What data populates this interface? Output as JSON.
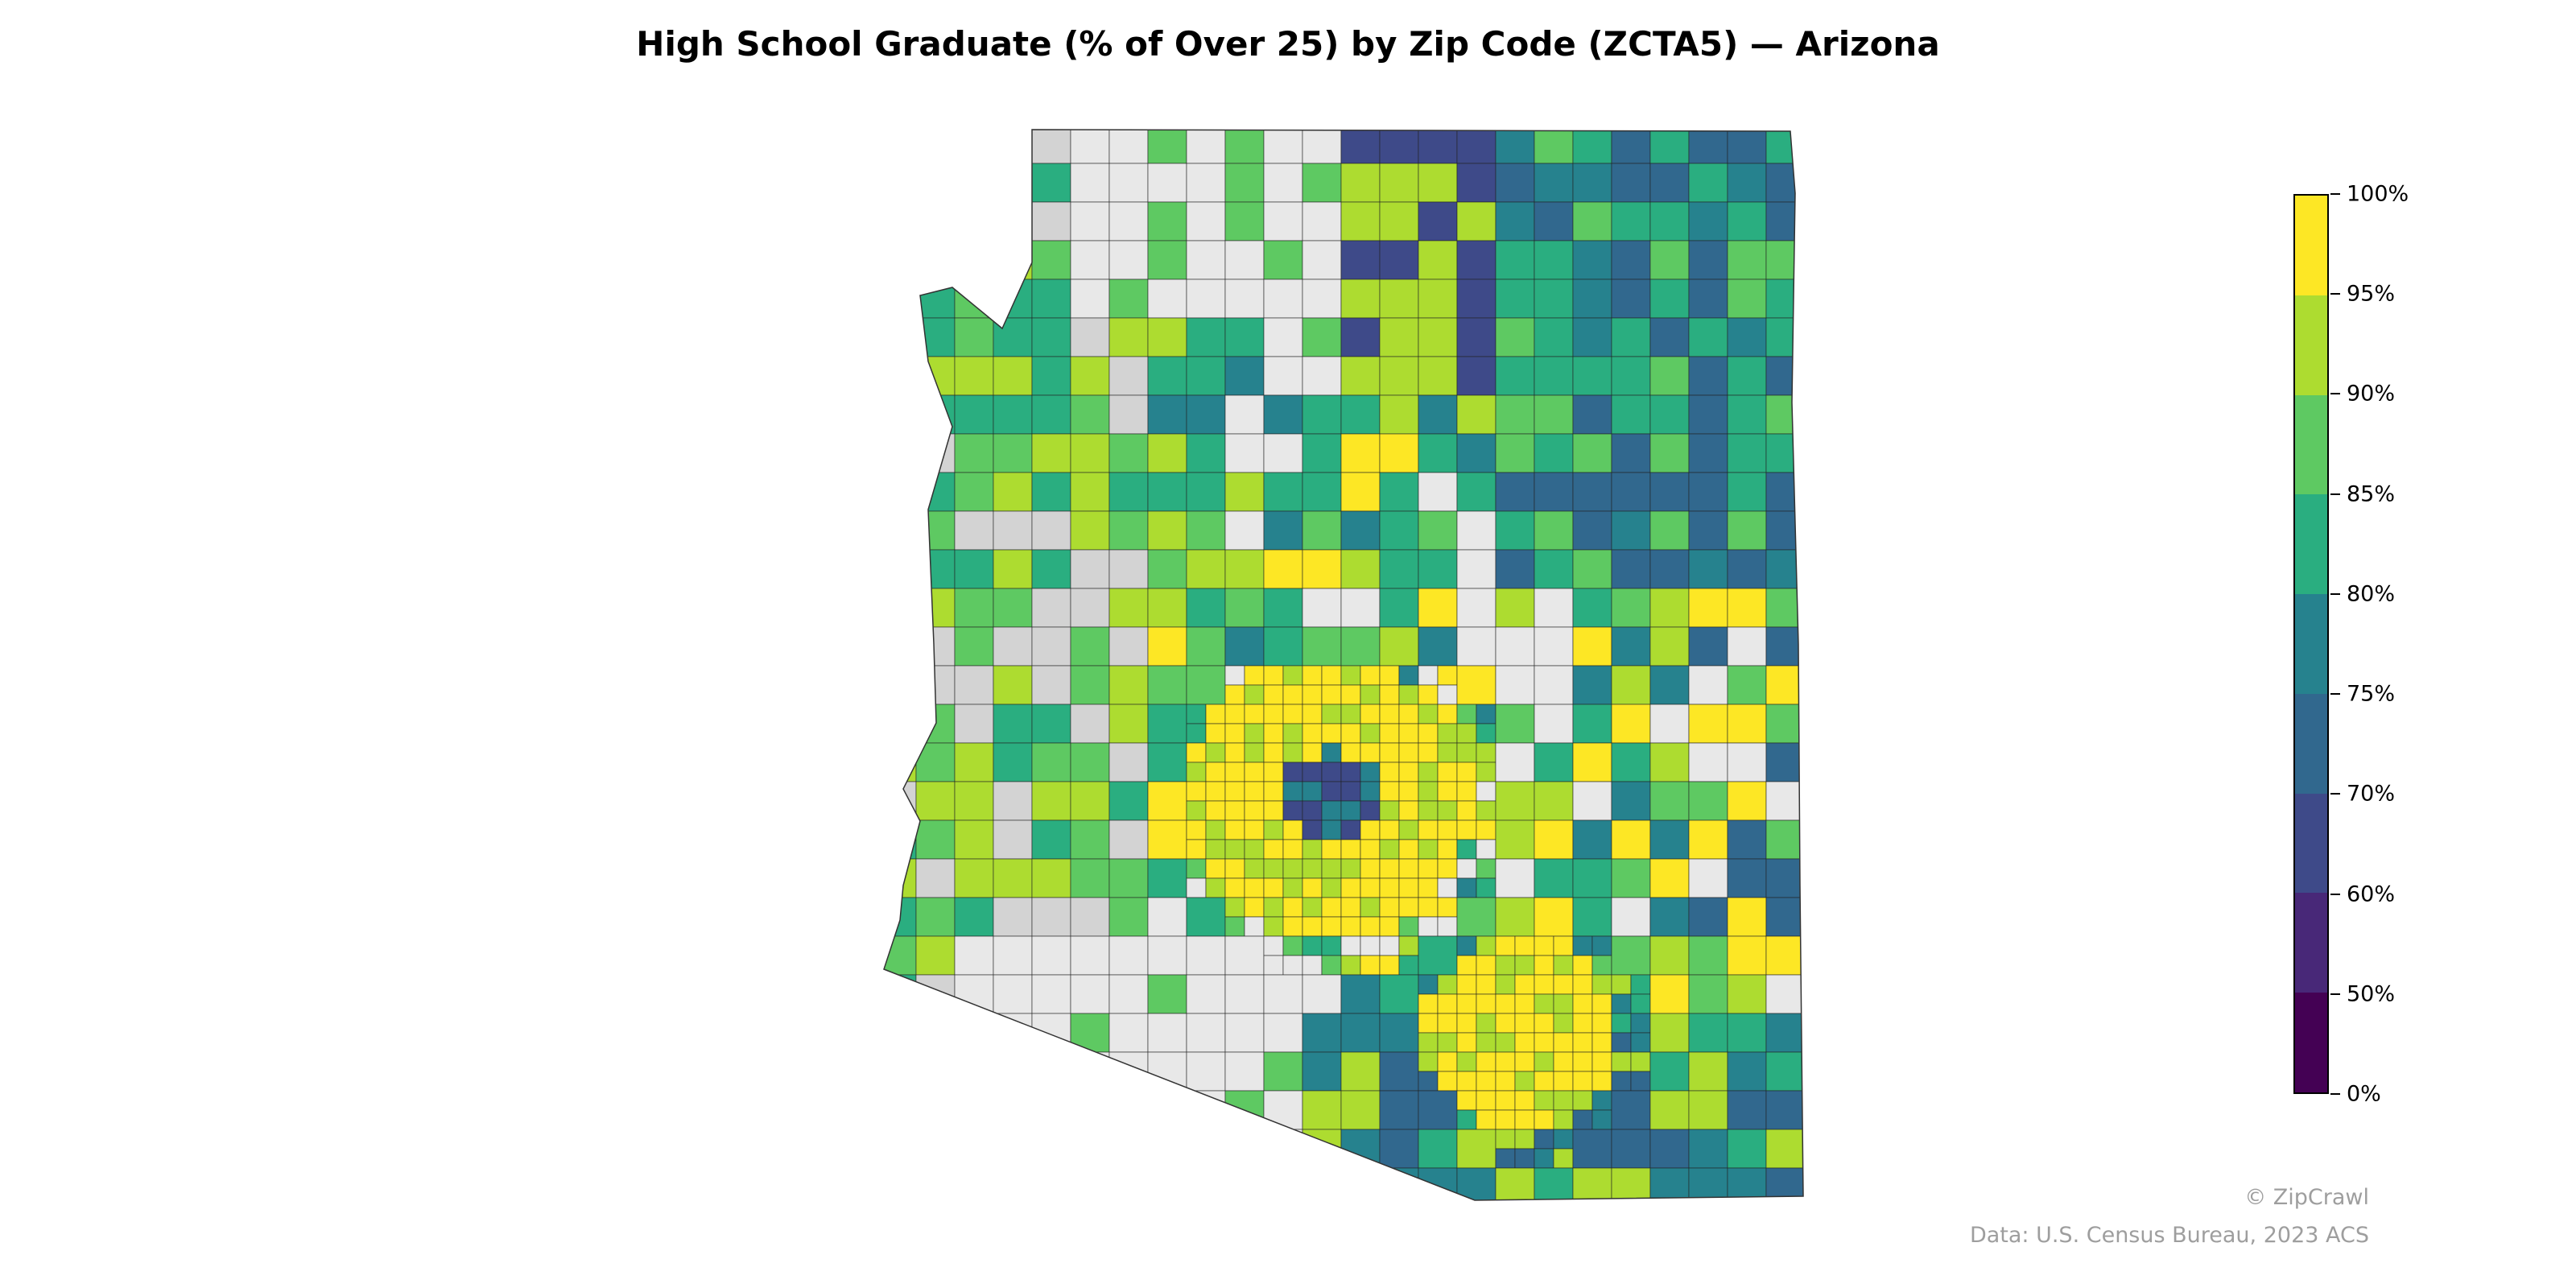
{
  "title": "High School Graduate (% of Over 25) by Zip Code (ZCTA5) — Arizona",
  "chart_data": {
    "type": "choropleth",
    "title": "High School Graduate (% of Over 25) by Zip Code (ZCTA5) — Arizona",
    "region": "Arizona",
    "unit": "ZCTA5",
    "no_data_color": "#e8e8e8",
    "colorbar": {
      "ticks": [
        "0%",
        "50%",
        "60%",
        "70%",
        "75%",
        "80%",
        "85%",
        "90%",
        "95%",
        "100%"
      ],
      "bins": [
        {
          "from": 0,
          "to": 50,
          "color": "#440154"
        },
        {
          "from": 50,
          "to": 60,
          "color": "#482878"
        },
        {
          "from": 60,
          "to": 70,
          "color": "#3e4a89"
        },
        {
          "from": 70,
          "to": 75,
          "color": "#31688e"
        },
        {
          "from": 75,
          "to": 80,
          "color": "#26828e"
        },
        {
          "from": 80,
          "to": 85,
          "color": "#2aae80"
        },
        {
          "from": 85,
          "to": 90,
          "color": "#5ec962"
        },
        {
          "from": 90,
          "to": 95,
          "color": "#addc30"
        },
        {
          "from": 95,
          "to": 100,
          "color": "#fde725"
        }
      ]
    }
  },
  "footer": {
    "copyright": "© ZipCrawl",
    "source": "Data: U.S. Census Bureau, 2023 ACS"
  }
}
